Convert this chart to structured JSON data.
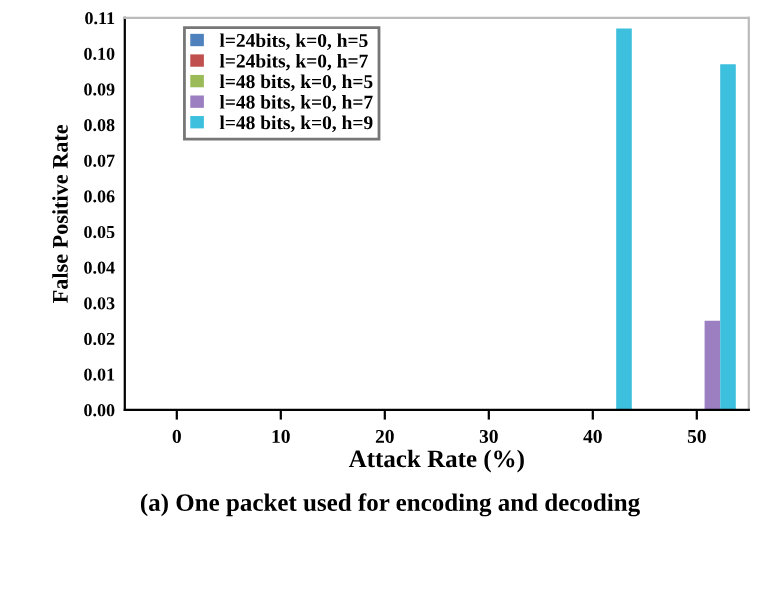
{
  "chart_data": {
    "type": "bar",
    "xlabel": "Attack Rate (%)",
    "ylabel": "False Positive Rate",
    "categories": [
      "0",
      "10",
      "20",
      "30",
      "40",
      "50"
    ],
    "series": [
      {
        "name": "l=24bits, k=0, h=5",
        "color": "#4f81bd",
        "values": [
          0,
          0,
          0,
          0,
          0,
          0
        ]
      },
      {
        "name": "l=24bits, k=0, h=7",
        "color": "#c0504d",
        "values": [
          0,
          0,
          0,
          0,
          0,
          0
        ]
      },
      {
        "name": "l=48 bits, k=0, h=5",
        "color": "#9bbb59",
        "values": [
          0,
          0,
          0,
          0,
          0,
          0
        ]
      },
      {
        "name": "l=48 bits, k=0, h=7",
        "color": "#9b7fc0",
        "values": [
          0,
          0,
          0,
          0,
          0,
          0.025
        ]
      },
      {
        "name": "l=48 bits, k=0, h=9",
        "color": "#3cc0de",
        "values": [
          0,
          0,
          0,
          0,
          0.107,
          0.097
        ]
      }
    ],
    "ylim": [
      0,
      0.11
    ],
    "yticks": [
      {
        "value": 0,
        "label": "0.00"
      },
      {
        "value": 0.01,
        "label": "0.01"
      },
      {
        "value": 0.02,
        "label": "0.02"
      },
      {
        "value": 0.03,
        "label": "0.03"
      },
      {
        "value": 0.04,
        "label": "0.04"
      },
      {
        "value": 0.05,
        "label": "0.05"
      },
      {
        "value": 0.06,
        "label": "0.06"
      },
      {
        "value": 0.07,
        "label": "0.07"
      },
      {
        "value": 0.08,
        "label": "0.08"
      },
      {
        "value": 0.09,
        "label": "0.09"
      },
      {
        "value": 0.1,
        "label": "0.10"
      },
      {
        "value": 0.11,
        "label": "0.11"
      }
    ],
    "grid": false,
    "legend": "top left",
    "annotations": [
      "(a) One packet used for encoding and decoding"
    ]
  }
}
